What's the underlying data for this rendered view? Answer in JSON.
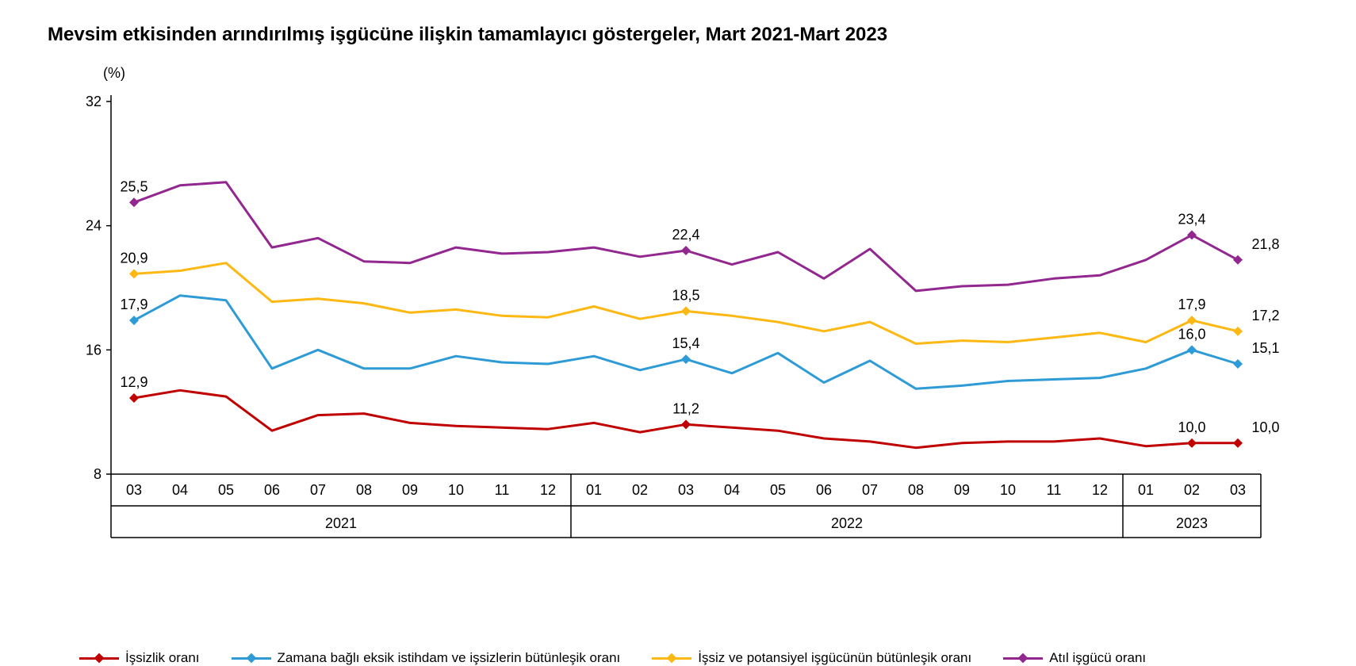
{
  "chart": {
    "type": "line",
    "title": "Mevsim etkisinden arındırılmış işgücüne ilişkin tamamlayıcı göstergeler, Mart 2021-Mart 2023",
    "y_axis_unit_label": "(%)",
    "background_color": "#ffffff",
    "axis_color": "#000000",
    "axis_line_width": 1.5,
    "tick_font_size": 18,
    "tick_font_color": "#000000",
    "title_font_size": 24,
    "title_font_weight": "700",
    "line_width": 3,
    "marker_size": 6,
    "marker_shape": "diamond",
    "y": {
      "min": 8,
      "max": 32,
      "ticks": [
        8,
        16,
        24,
        32
      ]
    },
    "x": {
      "months": [
        "03",
        "04",
        "05",
        "06",
        "07",
        "08",
        "09",
        "10",
        "11",
        "12",
        "01",
        "02",
        "03",
        "04",
        "05",
        "06",
        "07",
        "08",
        "09",
        "10",
        "11",
        "12",
        "01",
        "02",
        "03"
      ],
      "year_groups": [
        {
          "label": "2021",
          "start_index": 0,
          "end_index": 9
        },
        {
          "label": "2022",
          "start_index": 10,
          "end_index": 21
        },
        {
          "label": "2023",
          "start_index": 22,
          "end_index": 24
        }
      ]
    },
    "series": [
      {
        "id": "atil",
        "name": "Atıl işgücü oranı",
        "color": "#92278f",
        "values": [
          25.5,
          26.6,
          26.8,
          22.6,
          23.2,
          21.7,
          21.6,
          22.6,
          22.2,
          22.3,
          22.6,
          22.0,
          22.4,
          21.5,
          22.3,
          20.6,
          22.5,
          19.8,
          20.1,
          20.2,
          20.6,
          20.8,
          21.8,
          23.4,
          21.8
        ],
        "data_labels": [
          {
            "index": 0,
            "text": "25,5",
            "dy": -14,
            "dx": 0
          },
          {
            "index": 12,
            "text": "22,4",
            "dy": -14,
            "dx": 0
          },
          {
            "index": 23,
            "text": "23,4",
            "dy": -14,
            "dx": 0
          },
          {
            "index": 24,
            "text": "21,8",
            "dy": -14,
            "dx": 35
          }
        ]
      },
      {
        "id": "issiz-potansiyel",
        "name": "İşsiz ve potansiyel işgücünün bütünleşik oranı",
        "color": "#fdb813",
        "values": [
          20.9,
          21.1,
          21.6,
          19.1,
          19.3,
          19.0,
          18.4,
          18.6,
          18.2,
          18.1,
          18.8,
          18.0,
          18.5,
          18.2,
          17.8,
          17.2,
          17.8,
          16.4,
          16.6,
          16.5,
          16.8,
          17.1,
          16.5,
          17.9,
          17.2
        ],
        "data_labels": [
          {
            "index": 0,
            "text": "20,9",
            "dy": -14,
            "dx": 0
          },
          {
            "index": 12,
            "text": "18,5",
            "dy": -14,
            "dx": 0
          },
          {
            "index": 23,
            "text": "17,9",
            "dy": -14,
            "dx": 0
          },
          {
            "index": 24,
            "text": "17,2",
            "dy": -14,
            "dx": 35
          }
        ]
      },
      {
        "id": "zamana-bagli",
        "name": "Zamana bağlı eksik istihdam ve işsizlerin bütünleşik oranı",
        "color": "#2e9bd6",
        "values": [
          17.9,
          19.5,
          19.2,
          14.8,
          16.0,
          14.8,
          14.8,
          15.6,
          15.2,
          15.1,
          15.6,
          14.7,
          15.4,
          14.5,
          15.8,
          13.9,
          15.3,
          13.5,
          13.7,
          14.0,
          14.1,
          14.2,
          14.8,
          16.0,
          15.1
        ],
        "data_labels": [
          {
            "index": 0,
            "text": "17,9",
            "dy": -14,
            "dx": 0
          },
          {
            "index": 12,
            "text": "15,4",
            "dy": -14,
            "dx": 0
          },
          {
            "index": 23,
            "text": "16,0",
            "dy": -14,
            "dx": 0
          },
          {
            "index": 24,
            "text": "15,1",
            "dy": -14,
            "dx": 35
          }
        ]
      },
      {
        "id": "issizlik",
        "name": "İşsizlik oranı",
        "color": "#c00000",
        "values": [
          12.9,
          13.4,
          13.0,
          10.8,
          11.8,
          11.9,
          11.3,
          11.1,
          11.0,
          10.9,
          11.3,
          10.7,
          11.2,
          11.0,
          10.8,
          10.3,
          10.1,
          9.7,
          10.0,
          10.1,
          10.1,
          10.3,
          9.8,
          10.0,
          10.0
        ],
        "data_labels": [
          {
            "index": 0,
            "text": "12,9",
            "dy": -14,
            "dx": 0
          },
          {
            "index": 12,
            "text": "11,2",
            "dy": -14,
            "dx": 0
          },
          {
            "index": 23,
            "text": "10,0",
            "dy": -14,
            "dx": 0
          },
          {
            "index": 24,
            "text": "10,0",
            "dy": -14,
            "dx": 35
          }
        ]
      }
    ],
    "legend_order": [
      "issizlik",
      "zamana-bagli",
      "issiz-potansiyel",
      "atil"
    ],
    "legend_font_size": 17
  }
}
